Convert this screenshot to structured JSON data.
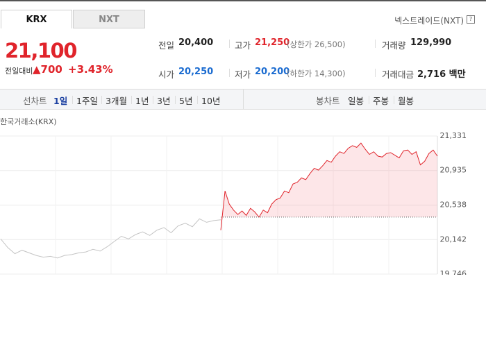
{
  "tabs": [
    "KRX",
    "NXT"
  ],
  "nxt_link": "넥스트레이드(NXT)",
  "help": "?",
  "price": "21,100",
  "change_label": "전일대비",
  "change": "▲700",
  "change_pct": "+3.43%",
  "stats": [
    {
      "label": "전일",
      "value": "20,400"
    },
    {
      "label": "고가",
      "value": "21,250",
      "note": "(상한가 26,500)"
    },
    {
      "label": "거래량",
      "value": "129,990"
    },
    {
      "label": "시가",
      "value": "20,250"
    },
    {
      "label": "저가",
      "value": "20,200",
      "note": "(하한가 14,300)"
    },
    {
      "label": "거래대금",
      "value": "2,716 백만"
    }
  ],
  "line_tabs": {
    "label": "선차트",
    "items": [
      "1일",
      "1주일",
      "3개월",
      "1년",
      "3년",
      "5년",
      "10년"
    ]
  },
  "candle_tabs": {
    "label": "봉차트",
    "items": [
      "일봉",
      "주봉",
      "월봉"
    ]
  },
  "chart_data": {
    "type": "line",
    "subtitle": "한국거래소(KRX)",
    "ylim": [
      19746,
      21331
    ],
    "yticks": [
      {
        "value": 21331,
        "label": "21,331"
      },
      {
        "value": 20935,
        "label": "20,935"
      },
      {
        "value": 20538,
        "label": "20,538"
      },
      {
        "value": 20142,
        "label": "20,142"
      },
      {
        "value": 19746,
        "label": "19,746"
      }
    ],
    "grid": true,
    "baseline": 20400,
    "series": [
      {
        "color": "#c4c4c4",
        "values": [
          20150,
          20050,
          19980,
          20020,
          19990,
          19960,
          19940,
          19950,
          19930,
          19960,
          19970,
          19990,
          20000,
          20030,
          20010,
          20060,
          20120,
          20180,
          20150,
          20200,
          20230,
          20190,
          20250,
          20280,
          20220,
          20300,
          20330,
          20290,
          20380,
          20340,
          20360,
          20370
        ]
      },
      {
        "color": "#e0242b",
        "values": [
          20250,
          20700,
          20550,
          20480,
          20430,
          20470,
          20420,
          20500,
          20460,
          20400,
          20480,
          20450,
          20550,
          20600,
          20620,
          20700,
          20680,
          20780,
          20800,
          20850,
          20830,
          20900,
          20960,
          20940,
          20990,
          21050,
          21030,
          21100,
          21150,
          21130,
          21190,
          21220,
          21200,
          21250,
          21180,
          21120,
          21150,
          21100,
          21090,
          21130,
          21140,
          21110,
          21080,
          21160,
          21170,
          21120,
          21150,
          21000,
          21040,
          21130,
          21170,
          21100
        ]
      }
    ]
  }
}
